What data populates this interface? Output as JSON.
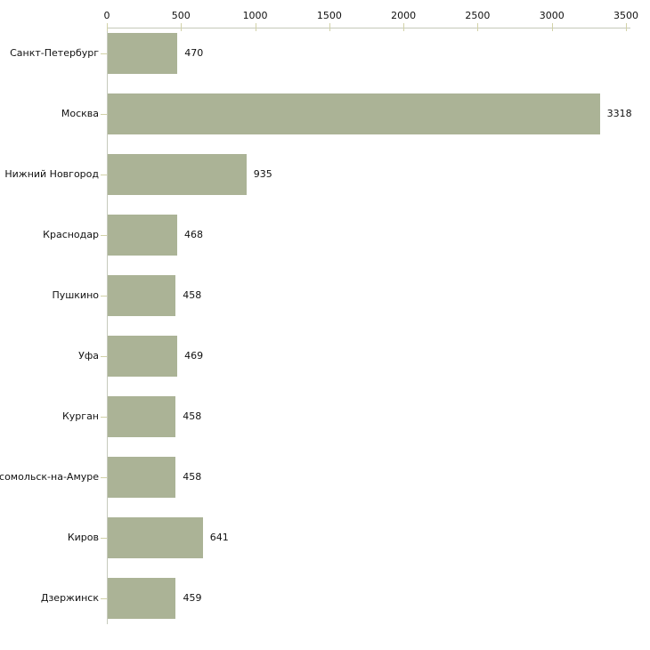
{
  "chart_data": {
    "type": "bar",
    "orientation": "horizontal",
    "title": "",
    "xlabel": "",
    "ylabel": "",
    "categories": [
      "Санкт-Петербург",
      "Москва",
      "Нижний Новгород",
      "Краснодар",
      "Пушкино",
      "Уфа",
      "Курган",
      "мсомольск-на-Амуре",
      "Киров",
      "Дзержинск"
    ],
    "values": [
      470,
      3318,
      935,
      468,
      458,
      469,
      458,
      458,
      641,
      459
    ],
    "x_ticks": [
      0,
      500,
      1000,
      1500,
      2000,
      2500,
      3000,
      3500
    ],
    "xlim": [
      0,
      3500
    ],
    "axis_position": "top",
    "grid": false,
    "legend": false,
    "bar_color": "#abb396",
    "axis_line_color": "#c5c9b9",
    "tick_color": "#d2d2a8",
    "text_color": "#111111",
    "background_color": "#ffffff"
  }
}
